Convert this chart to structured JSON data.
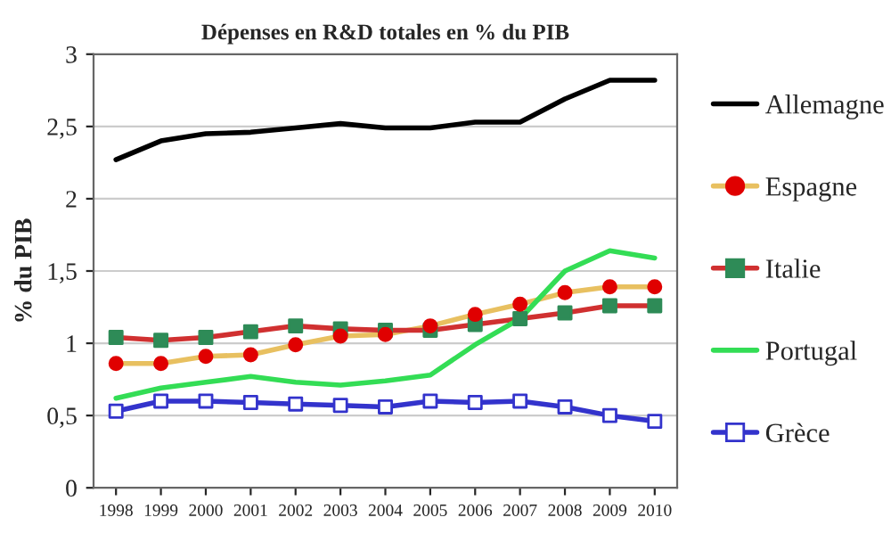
{
  "chart_data": {
    "type": "line",
    "title": "Dépenses en R&D totales en % du PIB",
    "ylabel": "% du PIB",
    "categories": [
      "1998",
      "1999",
      "2000",
      "2001",
      "2002",
      "2003",
      "2004",
      "2005",
      "2006",
      "2007",
      "2008",
      "2009",
      "2010"
    ],
    "ylim": [
      0,
      3
    ],
    "yticks": [
      0,
      {
        "value": 0.5,
        "label": "0,5"
      },
      1,
      {
        "value": 1.5,
        "label": "1,5"
      },
      2,
      {
        "value": 2.5,
        "label": "2,5"
      },
      3
    ],
    "grid": "y",
    "legend": "right",
    "series": [
      {
        "name": "Allemagne",
        "color": "#000000",
        "marker": "none",
        "values": [
          2.27,
          2.4,
          2.45,
          2.46,
          2.49,
          2.52,
          2.49,
          2.49,
          2.53,
          2.53,
          2.69,
          2.82,
          2.82
        ]
      },
      {
        "name": "Espagne",
        "color": "#e8c060",
        "marker": "circle",
        "colors": [
          "#e00000",
          "#e00000",
          "#e00000",
          "#e00000",
          "#e00000",
          "#e00000",
          "#e00000",
          "#e00000",
          "#e00000",
          "#e00000",
          "#e00000",
          "#e00000",
          "#e00000"
        ],
        "values": [
          0.86,
          0.86,
          0.91,
          0.92,
          0.99,
          1.05,
          1.06,
          1.12,
          1.2,
          1.27,
          1.35,
          1.39,
          1.39
        ]
      },
      {
        "name": "Italie",
        "color": "#d03030",
        "marker": "square",
        "colors": [
          "#2e8b57",
          "#2e8b57",
          "#2e8b57",
          "#2e8b57",
          "#2e8b57",
          "#2e8b57",
          "#2e8b57",
          "#2e8b57",
          "#2e8b57",
          "#2e8b57",
          "#2e8b57",
          "#2e8b57",
          "#2e8b57"
        ],
        "values": [
          1.04,
          1.02,
          1.04,
          1.08,
          1.12,
          1.1,
          1.09,
          1.09,
          1.13,
          1.17,
          1.21,
          1.26,
          1.26
        ]
      },
      {
        "name": "Portugal",
        "color": "#33dd55",
        "marker": "none",
        "values": [
          0.62,
          0.69,
          0.73,
          0.77,
          0.73,
          0.71,
          0.74,
          0.78,
          0.99,
          1.17,
          1.5,
          1.64,
          1.59
        ]
      },
      {
        "name": "Grèce",
        "color": "#3333cc",
        "marker": "square",
        "colors": [
          "#ffffff",
          "#ffffff",
          "#ffffff",
          "#ffffff",
          "#ffffff",
          "#ffffff",
          "#ffffff",
          "#ffffff",
          "#ffffff",
          "#ffffff",
          "#ffffff",
          "#ffffff",
          "#ffffff"
        ],
        "values": [
          0.53,
          0.6,
          0.6,
          0.59,
          0.58,
          0.57,
          0.56,
          0.6,
          0.59,
          0.6,
          0.56,
          0.5,
          0.46
        ]
      }
    ]
  }
}
